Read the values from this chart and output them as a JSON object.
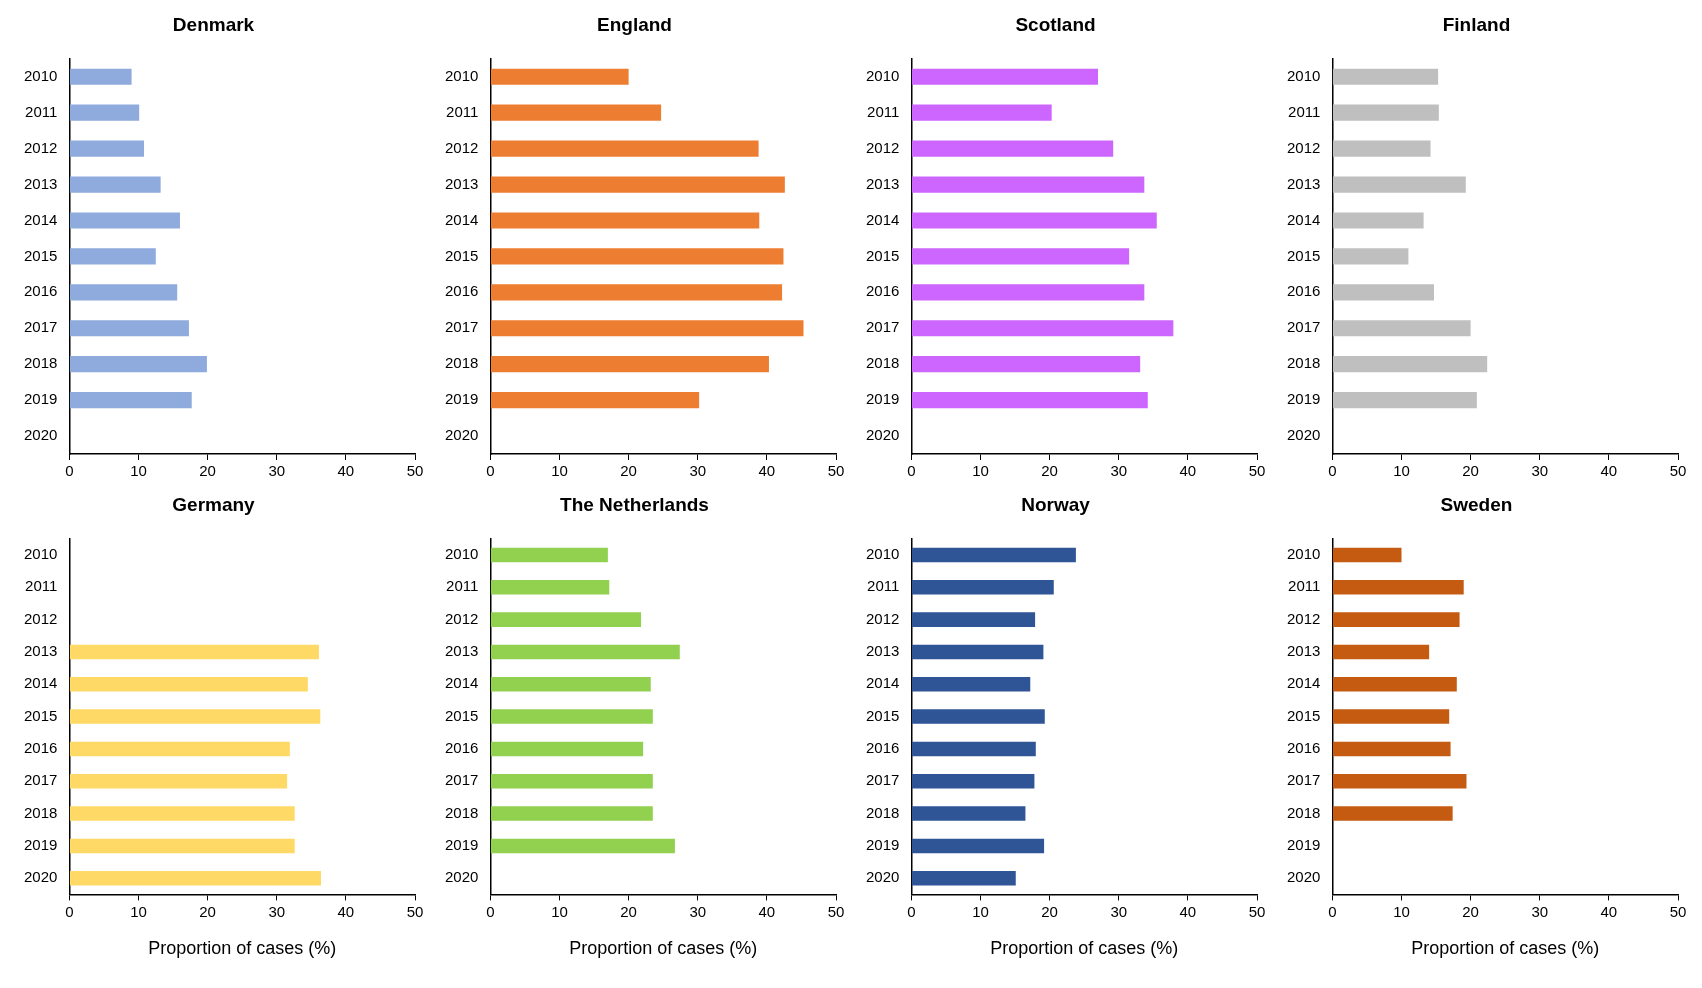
{
  "chart_data": [
    {
      "type": "bar",
      "orientation": "horizontal",
      "title": "Denmark",
      "categories": [
        "2010",
        "2011",
        "2012",
        "2013",
        "2014",
        "2015",
        "2016",
        "2017",
        "2018",
        "2019",
        "2020"
      ],
      "values": [
        9.0,
        10.1,
        10.8,
        13.2,
        16.0,
        12.5,
        15.6,
        17.3,
        19.9,
        17.7,
        null
      ],
      "color": "#8faadc",
      "xlim": [
        0,
        50
      ],
      "xticks": [
        0,
        10,
        20,
        30,
        40,
        50
      ],
      "grid": false,
      "legend": false
    },
    {
      "type": "bar",
      "orientation": "horizontal",
      "title": "England",
      "categories": [
        "2010",
        "2011",
        "2012",
        "2013",
        "2014",
        "2015",
        "2016",
        "2017",
        "2018",
        "2019",
        "2020"
      ],
      "values": [
        20.0,
        24.7,
        38.8,
        42.6,
        38.9,
        42.4,
        42.2,
        45.3,
        40.3,
        30.2,
        null
      ],
      "color": "#ed7d31",
      "xlim": [
        0,
        50
      ],
      "xticks": [
        0,
        10,
        20,
        30,
        40,
        50
      ],
      "grid": false,
      "legend": false
    },
    {
      "type": "bar",
      "orientation": "horizontal",
      "title": "Scotland",
      "categories": [
        "2010",
        "2011",
        "2012",
        "2013",
        "2014",
        "2015",
        "2016",
        "2017",
        "2018",
        "2019",
        "2020"
      ],
      "values": [
        27.0,
        20.3,
        29.2,
        33.7,
        35.5,
        31.5,
        33.7,
        37.9,
        33.1,
        34.2,
        null
      ],
      "color": "#cc66ff",
      "xlim": [
        0,
        50
      ],
      "xticks": [
        0,
        10,
        20,
        30,
        40,
        50
      ],
      "grid": false,
      "legend": false
    },
    {
      "type": "bar",
      "orientation": "horizontal",
      "title": "Finland",
      "categories": [
        "2010",
        "2011",
        "2012",
        "2013",
        "2014",
        "2015",
        "2016",
        "2017",
        "2018",
        "2019",
        "2020"
      ],
      "values": [
        15.3,
        15.4,
        14.2,
        19.3,
        13.2,
        11.0,
        14.7,
        20.0,
        22.4,
        20.9,
        null
      ],
      "color": "#bfbfbf",
      "xlim": [
        0,
        50
      ],
      "xticks": [
        0,
        10,
        20,
        30,
        40,
        50
      ],
      "grid": false,
      "legend": false
    },
    {
      "type": "bar",
      "orientation": "horizontal",
      "title": "Germany",
      "xlabel": "Proportion of cases (%)",
      "categories": [
        "2010",
        "2011",
        "2012",
        "2013",
        "2014",
        "2015",
        "2016",
        "2017",
        "2018",
        "2019",
        "2020"
      ],
      "values": [
        null,
        null,
        null,
        36.1,
        34.5,
        36.3,
        31.9,
        31.5,
        32.6,
        32.6,
        36.4
      ],
      "color": "#ffd966",
      "xlim": [
        0,
        50
      ],
      "xticks": [
        0,
        10,
        20,
        30,
        40,
        50
      ],
      "grid": false,
      "legend": false
    },
    {
      "type": "bar",
      "orientation": "horizontal",
      "title": "The Netherlands",
      "xlabel": "Proportion of cases (%)",
      "categories": [
        "2010",
        "2011",
        "2012",
        "2013",
        "2014",
        "2015",
        "2016",
        "2017",
        "2018",
        "2019",
        "2020"
      ],
      "values": [
        17.0,
        17.2,
        21.8,
        27.4,
        23.2,
        23.5,
        22.1,
        23.5,
        23.5,
        26.7,
        null
      ],
      "color": "#92d050",
      "xlim": [
        0,
        50
      ],
      "xticks": [
        0,
        10,
        20,
        30,
        40,
        50
      ],
      "grid": false,
      "legend": false
    },
    {
      "type": "bar",
      "orientation": "horizontal",
      "title": "Norway",
      "xlabel": "Proportion of cases (%)",
      "categories": [
        "2010",
        "2011",
        "2012",
        "2013",
        "2014",
        "2015",
        "2016",
        "2017",
        "2018",
        "2019",
        "2020"
      ],
      "values": [
        23.8,
        20.6,
        17.9,
        19.1,
        17.2,
        19.3,
        18.0,
        17.8,
        16.5,
        19.2,
        15.1
      ],
      "color": "#2f5597",
      "xlim": [
        0,
        50
      ],
      "xticks": [
        0,
        10,
        20,
        30,
        40,
        50
      ],
      "grid": false,
      "legend": false
    },
    {
      "type": "bar",
      "orientation": "horizontal",
      "title": "Sweden",
      "xlabel": "Proportion of cases (%)",
      "categories": [
        "2010",
        "2011",
        "2012",
        "2013",
        "2014",
        "2015",
        "2016",
        "2017",
        "2018",
        "2019",
        "2020"
      ],
      "values": [
        10.0,
        19.0,
        18.4,
        14.0,
        18.0,
        16.9,
        17.1,
        19.4,
        17.4,
        null,
        null
      ],
      "color": "#c55a11",
      "xlim": [
        0,
        50
      ],
      "xticks": [
        0,
        10,
        20,
        30,
        40,
        50
      ],
      "grid": false,
      "legend": false
    }
  ]
}
